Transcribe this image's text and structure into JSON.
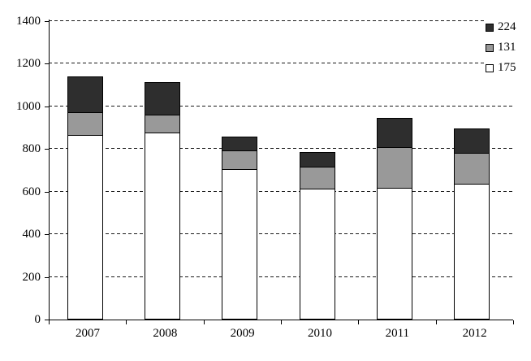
{
  "chart_data": {
    "type": "bar",
    "stacked": true,
    "title": "",
    "xlabel": "",
    "ylabel": "",
    "categories": [
      "2007",
      "2008",
      "2009",
      "2010",
      "2011",
      "2012"
    ],
    "series": [
      {
        "name": "175",
        "color": "#ffffff",
        "values": [
          870,
          880,
          710,
          620,
          620,
          640
        ]
      },
      {
        "name": "131",
        "color": "#999999",
        "values": [
          105,
          85,
          85,
          100,
          190,
          145
        ]
      },
      {
        "name": "224",
        "color": "#2e2e2e",
        "values": [
          165,
          150,
          65,
          65,
          135,
          110
        ]
      }
    ],
    "totals": [
      1140,
      1115,
      860,
      785,
      945,
      895
    ],
    "ylim": [
      0,
      1400
    ],
    "ytick_step": 200,
    "yticks": [
      0,
      200,
      400,
      600,
      800,
      1000,
      1200,
      1400
    ],
    "ytick_labels": [
      "0",
      "200",
      "400",
      "600",
      "800",
      "1000",
      "1200",
      "1400"
    ],
    "grid": "horizontal-dashed",
    "legend_position": "top-right",
    "legend": [
      {
        "label": "224",
        "color": "#2e2e2e"
      },
      {
        "label": "131",
        "color": "#999999"
      },
      {
        "label": "175",
        "color": "#ffffff"
      }
    ],
    "axis_color": "#000000",
    "background_color": "#ffffff"
  }
}
